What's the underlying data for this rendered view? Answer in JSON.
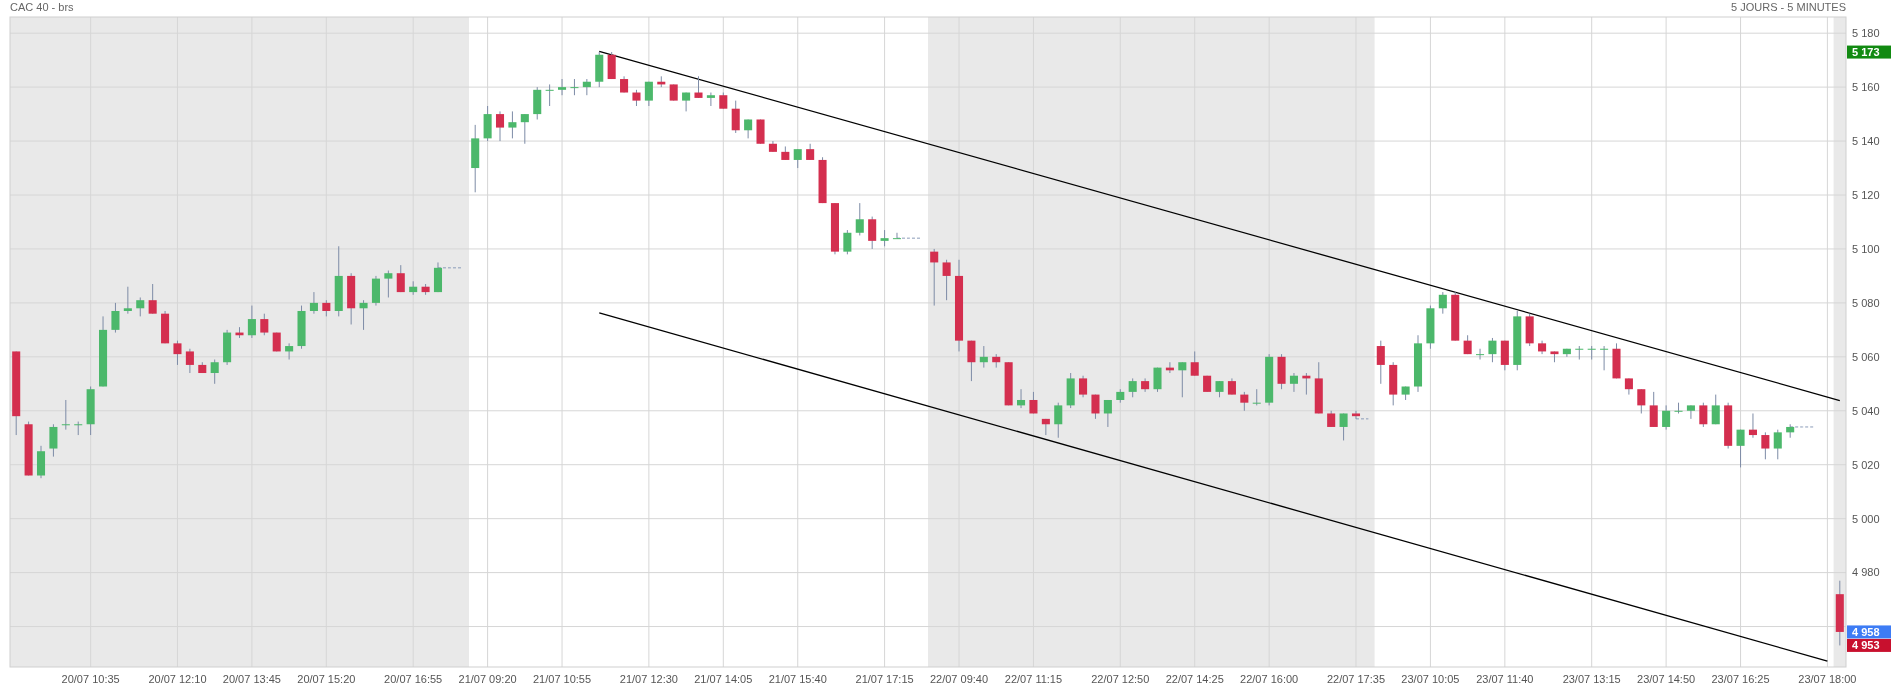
{
  "chart_data": {
    "type": "candlestick",
    "title": "CAC 40 - brs",
    "subtitle": "5 JOURS - 5 MINUTES",
    "categories": [
      null,
      null,
      null,
      null,
      null,
      null,
      "20/07 10:35",
      null,
      null,
      null,
      null,
      null,
      null,
      "20/07 12:10",
      null,
      null,
      null,
      null,
      null,
      "20/07 13:45",
      null,
      null,
      null,
      null,
      null,
      "20/07 15:20",
      null,
      null,
      null,
      null,
      null,
      null,
      "20/07 16:55",
      null,
      null,
      null,
      null,
      null,
      "21/07 09:20",
      null,
      null,
      null,
      null,
      null,
      "21/07 10:55",
      null,
      null,
      null,
      null,
      null,
      null,
      "21/07 12:30",
      null,
      null,
      null,
      null,
      null,
      "21/07 14:05",
      null,
      null,
      null,
      null,
      null,
      "21/07 15:40",
      null,
      null,
      null,
      null,
      null,
      null,
      "21/07 17:15",
      null,
      null,
      null,
      null,
      null,
      "22/07 09:40",
      null,
      null,
      null,
      null,
      null,
      "22/07 11:15",
      null,
      null,
      null,
      null,
      null,
      null,
      "22/07 12:50",
      null,
      null,
      null,
      null,
      null,
      "22/07 14:25",
      null,
      null,
      null,
      null,
      null,
      "22/07 16:00",
      null,
      null,
      null,
      null,
      null,
      null,
      "22/07 17:35",
      null,
      null,
      null,
      null,
      null,
      "23/07 10:05",
      null,
      null,
      null,
      null,
      null,
      "23/07 11:40",
      null,
      null,
      null,
      null,
      null,
      null,
      "23/07 13:15",
      null,
      null,
      null,
      null,
      null,
      "23/07 14:50",
      null,
      null,
      null,
      null,
      null,
      "23/07 16:25",
      null,
      null,
      null,
      null,
      null,
      null,
      "23/07 18:00",
      null
    ],
    "ohlc": [
      [
        5062,
        5062,
        5031,
        5038
      ],
      [
        5035,
        5036,
        5016,
        5016
      ],
      [
        5016,
        5027,
        5015,
        5025
      ],
      [
        5026,
        5035,
        5023,
        5034
      ],
      [
        5035,
        5044,
        5033,
        5035
      ],
      [
        5035,
        5036,
        5031,
        5035
      ],
      [
        5035,
        5049,
        5031,
        5048
      ],
      [
        5049,
        5075,
        5049,
        5070
      ],
      [
        5070,
        5080,
        5069,
        5077
      ],
      [
        5077,
        5086,
        5076,
        5078
      ],
      [
        5078,
        5082,
        5075,
        5081
      ],
      [
        5081,
        5087,
        5076,
        5076
      ],
      [
        5076,
        5077,
        5065,
        5065
      ],
      [
        5065,
        5066,
        5057,
        5061
      ],
      [
        5062,
        5063,
        5054,
        5057
      ],
      [
        5057,
        5058,
        5054,
        5054
      ],
      [
        5054,
        5059,
        5050,
        5058
      ],
      [
        5058,
        5070,
        5057,
        5069
      ],
      [
        5069,
        5071,
        5067,
        5068
      ],
      [
        5068,
        5079,
        5067,
        5074
      ],
      [
        5074,
        5076,
        5068,
        5069
      ],
      [
        5069,
        5069,
        5062,
        5062
      ],
      [
        5062,
        5065,
        5059,
        5064
      ],
      [
        5064,
        5079,
        5063,
        5077
      ],
      [
        5077,
        5084,
        5076,
        5080
      ],
      [
        5080,
        5081,
        5075,
        5077
      ],
      [
        5077,
        5101,
        5075,
        5090
      ],
      [
        5090,
        5091,
        5072,
        5078
      ],
      [
        5078,
        5081,
        5070,
        5080
      ],
      [
        5080,
        5090,
        5079,
        5089
      ],
      [
        5089,
        5092,
        5082,
        5091
      ],
      [
        5091,
        5094,
        5084,
        5084
      ],
      [
        5084,
        5088,
        5083,
        5086
      ],
      [
        5086,
        5087,
        5083,
        5084
      ],
      [
        5084,
        5095,
        5084,
        5093
      ],
      null,
      null,
      [
        5130,
        5146,
        5121,
        5141
      ],
      [
        5141,
        5153,
        5140,
        5150
      ],
      [
        5150,
        5151,
        5140,
        5145
      ],
      [
        5145,
        5151,
        5141,
        5147
      ],
      [
        5147,
        5150,
        5139,
        5150
      ],
      [
        5150,
        5160,
        5148,
        5159
      ],
      [
        5159,
        5161,
        5153,
        5159
      ],
      [
        5159,
        5163,
        5157,
        5160
      ],
      [
        5160,
        5163,
        5157,
        5160
      ],
      [
        5160,
        5163,
        5157,
        5162
      ],
      [
        5162,
        5173,
        5160,
        5172
      ],
      [
        5172,
        5173,
        5163,
        5163
      ],
      [
        5163,
        5164,
        5158,
        5158
      ],
      [
        5158,
        5159,
        5153,
        5155
      ],
      [
        5155,
        5162,
        5153,
        5162
      ],
      [
        5162,
        5164,
        5160,
        5161
      ],
      [
        5161,
        5161,
        5155,
        5155
      ],
      [
        5155,
        5158,
        5151,
        5158
      ],
      [
        5158,
        5164,
        5156,
        5156
      ],
      [
        5156,
        5158,
        5153,
        5157
      ],
      [
        5157,
        5158,
        5152,
        5152
      ],
      [
        5152,
        5155,
        5143,
        5144
      ],
      [
        5144,
        5148,
        5141,
        5148
      ],
      [
        5148,
        5148,
        5139,
        5139
      ],
      [
        5139,
        5140,
        5136,
        5136
      ],
      [
        5136,
        5138,
        5133,
        5133
      ],
      [
        5133,
        5137,
        5130,
        5137
      ],
      [
        5137,
        5139,
        5133,
        5133
      ],
      [
        5133,
        5134,
        5117,
        5117
      ],
      [
        5117,
        5117,
        5098,
        5099
      ],
      [
        5099,
        5107,
        5098,
        5106
      ],
      [
        5106,
        5117,
        5105,
        5111
      ],
      [
        5111,
        5112,
        5100,
        5103
      ],
      [
        5103,
        5107,
        5101,
        5104
      ],
      [
        5104,
        5106,
        5104,
        5104
      ],
      null,
      null,
      [
        5099,
        5100,
        5079,
        5095
      ],
      [
        5095,
        5096,
        5081,
        5090
      ],
      [
        5090,
        5096,
        5062,
        5066
      ],
      [
        5066,
        5066,
        5051,
        5058
      ],
      [
        5058,
        5064,
        5056,
        5060
      ],
      [
        5060,
        5061,
        5056,
        5058
      ],
      [
        5058,
        5058,
        5042,
        5042
      ],
      [
        5042,
        5048,
        5041,
        5044
      ],
      [
        5044,
        5047,
        5039,
        5039
      ],
      [
        5037,
        5037,
        5031,
        5035
      ],
      [
        5035,
        5043,
        5030,
        5042
      ],
      [
        5042,
        5054,
        5041,
        5052
      ],
      [
        5052,
        5053,
        5045,
        5046
      ],
      [
        5046,
        5046,
        5037,
        5039
      ],
      [
        5039,
        5044,
        5034,
        5044
      ],
      [
        5044,
        5048,
        5043,
        5047
      ],
      [
        5047,
        5052,
        5045,
        5051
      ],
      [
        5051,
        5052,
        5047,
        5048
      ],
      [
        5048,
        5056,
        5047,
        5056
      ],
      [
        5056,
        5058,
        5054,
        5055
      ],
      [
        5055,
        5058,
        5045,
        5058
      ],
      [
        5058,
        5062,
        5053,
        5053
      ],
      [
        5053,
        5053,
        5047,
        5047
      ],
      [
        5047,
        5051,
        5045,
        5051
      ],
      [
        5051,
        5052,
        5046,
        5046
      ],
      [
        5046,
        5047,
        5040,
        5043
      ],
      [
        5043,
        5048,
        5042,
        5043
      ],
      [
        5043,
        5061,
        5042,
        5060
      ],
      [
        5060,
        5061,
        5048,
        5050
      ],
      [
        5050,
        5054,
        5047,
        5053
      ],
      [
        5053,
        5054,
        5046,
        5052
      ],
      [
        5052,
        5058,
        5039,
        5039
      ],
      [
        5039,
        5040,
        5034,
        5034
      ],
      [
        5034,
        5039,
        5029,
        5039
      ],
      [
        5039,
        5040,
        5037,
        5038
      ],
      null,
      [
        5064,
        5066,
        5050,
        5057
      ],
      [
        5057,
        5058,
        5042,
        5046
      ],
      [
        5046,
        5049,
        5044,
        5049
      ],
      [
        5049,
        5068,
        5047,
        5065
      ],
      [
        5065,
        5079,
        5063,
        5078
      ],
      [
        5078,
        5084,
        5076,
        5083
      ],
      [
        5083,
        5084,
        5066,
        5066
      ],
      [
        5066,
        5068,
        5061,
        5061
      ],
      [
        5061,
        5063,
        5059,
        5061
      ],
      [
        5061,
        5067,
        5058,
        5066
      ],
      [
        5066,
        5066,
        5055,
        5057
      ],
      [
        5057,
        5077,
        5055,
        5075
      ],
      [
        5075,
        5076,
        5064,
        5065
      ],
      [
        5065,
        5066,
        5061,
        5062
      ],
      [
        5062,
        5062,
        5058,
        5061
      ],
      [
        5061,
        5063,
        5060,
        5063
      ],
      [
        5063,
        5064,
        5059,
        5063
      ],
      [
        5063,
        5064,
        5059,
        5063
      ],
      [
        5063,
        5064,
        5055,
        5063
      ],
      [
        5063,
        5065,
        5052,
        5052
      ],
      [
        5052,
        5052,
        5046,
        5048
      ],
      [
        5048,
        5048,
        5039,
        5042
      ],
      [
        5042,
        5047,
        5034,
        5034
      ],
      [
        5034,
        5042,
        5033,
        5040
      ],
      [
        5040,
        5043,
        5039,
        5040
      ],
      [
        5040,
        5042,
        5037,
        5042
      ],
      [
        5042,
        5043,
        5034,
        5035
      ],
      [
        5035,
        5046,
        5035,
        5042
      ],
      [
        5042,
        5043,
        5026,
        5027
      ],
      [
        5027,
        5033,
        5019,
        5033
      ],
      [
        5033,
        5039,
        5030,
        5031
      ],
      [
        5031,
        5032,
        5022,
        5026
      ],
      [
        5026,
        5033,
        5022,
        5032
      ],
      [
        5032,
        5035,
        5030,
        5034
      ],
      null,
      null,
      null,
      [
        4972,
        4977,
        4953,
        4958
      ]
    ],
    "series": [
      {
        "type": "line",
        "color": "#8a9bb8",
        "line_style": "dashed",
        "values": [
          null,
          null,
          null,
          null,
          null,
          null,
          null,
          null,
          null,
          null,
          null,
          null,
          null,
          null,
          null,
          null,
          null,
          null,
          null,
          null,
          null,
          null,
          null,
          null,
          null,
          null,
          null,
          null,
          null,
          null,
          null,
          null,
          null,
          null,
          5093,
          5093,
          5093,
          null,
          null,
          null,
          null,
          null,
          null,
          null,
          null,
          null,
          null,
          null,
          null,
          null,
          null,
          null,
          null,
          null,
          null,
          null,
          null,
          null,
          null,
          null,
          null,
          null,
          null,
          null,
          null,
          null,
          null,
          null,
          null,
          null,
          null,
          null,
          null,
          null,
          null,
          null,
          null,
          null,
          null,
          null,
          null,
          null,
          null,
          null,
          null,
          null,
          null,
          null,
          null,
          null,
          null,
          null,
          null,
          null,
          null,
          null,
          null,
          null,
          null,
          null,
          null,
          null,
          null,
          null,
          null,
          null,
          null,
          null,
          null,
          null,
          null,
          null,
          null,
          null,
          null,
          null,
          null,
          null,
          null,
          null,
          null,
          null,
          null,
          null,
          null,
          null,
          null,
          null,
          null,
          null,
          null,
          null,
          null,
          null,
          null,
          null,
          null,
          null,
          null,
          null,
          null,
          null,
          null,
          null,
          null,
          null,
          null,
          null
        ]
      },
      {
        "type": "line",
        "color": "#8a9bb8",
        "line_style": "dashed",
        "values": [
          null,
          null,
          null,
          null,
          null,
          null,
          null,
          null,
          null,
          null,
          null,
          null,
          null,
          null,
          null,
          null,
          null,
          null,
          null,
          null,
          null,
          null,
          null,
          null,
          null,
          null,
          null,
          null,
          null,
          null,
          null,
          null,
          null,
          null,
          null,
          null,
          null,
          null,
          null,
          null,
          null,
          null,
          null,
          null,
          null,
          null,
          null,
          null,
          null,
          null,
          null,
          null,
          null,
          null,
          null,
          null,
          null,
          null,
          null,
          null,
          null,
          null,
          null,
          null,
          null,
          null,
          null,
          null,
          null,
          null,
          null,
          5104,
          5104,
          5104,
          null,
          null,
          null,
          null,
          null,
          null,
          null,
          null,
          null,
          null,
          null,
          null,
          null,
          null,
          null,
          null,
          null,
          null,
          null,
          null,
          null,
          null,
          null,
          null,
          null,
          null,
          null,
          null,
          null,
          null,
          null,
          null,
          null,
          null,
          null,
          null,
          null,
          null,
          null,
          null,
          null,
          null,
          null,
          null,
          null,
          null,
          null,
          null,
          null,
          null,
          null,
          null,
          null,
          null,
          null,
          null,
          null,
          null,
          null,
          null,
          null,
          null,
          null,
          null,
          null,
          null,
          null,
          null,
          null,
          null,
          null,
          null,
          null,
          null
        ]
      },
      {
        "type": "line",
        "color": "#8a9bb8",
        "line_style": "dashed",
        "values": [
          null,
          null,
          null,
          null,
          null,
          null,
          null,
          null,
          null,
          null,
          null,
          null,
          null,
          null,
          null,
          null,
          null,
          null,
          null,
          null,
          null,
          null,
          null,
          null,
          null,
          null,
          null,
          null,
          null,
          null,
          null,
          null,
          null,
          null,
          null,
          null,
          null,
          null,
          null,
          null,
          null,
          null,
          null,
          null,
          null,
          null,
          null,
          null,
          null,
          null,
          null,
          null,
          null,
          null,
          null,
          null,
          null,
          null,
          null,
          null,
          null,
          null,
          null,
          null,
          null,
          null,
          null,
          null,
          null,
          null,
          null,
          null,
          null,
          null,
          null,
          null,
          null,
          null,
          null,
          null,
          null,
          null,
          null,
          null,
          null,
          null,
          null,
          null,
          null,
          null,
          null,
          null,
          null,
          null,
          null,
          null,
          null,
          null,
          null,
          null,
          null,
          null,
          null,
          null,
          null,
          null,
          null,
          null,
          5037,
          5037,
          null,
          null,
          null,
          null,
          null,
          null,
          null,
          null,
          null,
          null,
          null,
          null,
          null,
          null,
          null,
          null,
          null,
          null,
          null,
          null,
          null,
          null,
          null,
          null,
          null,
          null,
          null,
          null,
          null,
          null,
          null,
          null,
          null,
          null,
          null,
          null,
          null,
          null
        ]
      },
      {
        "type": "line",
        "color": "#8a9bb8",
        "line_style": "dashed",
        "values": [
          null,
          null,
          null,
          null,
          null,
          null,
          null,
          null,
          null,
          null,
          null,
          null,
          null,
          null,
          null,
          null,
          null,
          null,
          null,
          null,
          null,
          null,
          null,
          null,
          null,
          null,
          null,
          null,
          null,
          null,
          null,
          null,
          null,
          null,
          null,
          null,
          null,
          null,
          null,
          null,
          null,
          null,
          null,
          null,
          null,
          null,
          null,
          null,
          null,
          null,
          null,
          null,
          null,
          null,
          null,
          null,
          null,
          null,
          null,
          null,
          null,
          null,
          null,
          null,
          null,
          null,
          null,
          null,
          null,
          null,
          null,
          null,
          null,
          null,
          null,
          null,
          null,
          null,
          null,
          null,
          null,
          null,
          null,
          null,
          null,
          null,
          null,
          null,
          null,
          null,
          null,
          null,
          null,
          null,
          null,
          null,
          null,
          null,
          null,
          null,
          null,
          null,
          null,
          null,
          null,
          null,
          null,
          null,
          null,
          null,
          null,
          null,
          null,
          null,
          null,
          null,
          null,
          null,
          null,
          null,
          null,
          null,
          null,
          null,
          null,
          null,
          null,
          null,
          null,
          null,
          null,
          null,
          null,
          null,
          null,
          null,
          null,
          null,
          null,
          null,
          null,
          null,
          null,
          5034,
          5034,
          5034,
          null,
          null
        ]
      },
      {
        "type": "line",
        "color": "#000000",
        "values": [
          null,
          null,
          null,
          null,
          null,
          null,
          null,
          null,
          null,
          null,
          null,
          null,
          null,
          null,
          null,
          null,
          null,
          null,
          null,
          null,
          null,
          null,
          null,
          null,
          null,
          null,
          null,
          null,
          null,
          null,
          null,
          null,
          null,
          null,
          null,
          null,
          null,
          null,
          null,
          null,
          null,
          null,
          null,
          null,
          null,
          null,
          null,
          5173.3,
          null,
          null,
          null,
          null,
          null,
          null,
          null,
          null,
          null,
          null,
          null,
          null,
          null,
          null,
          null,
          null,
          null,
          null,
          null,
          null,
          null,
          null,
          null,
          null,
          null,
          null,
          null,
          null,
          null,
          null,
          null,
          null,
          null,
          null,
          null,
          null,
          null,
          null,
          null,
          null,
          null,
          null,
          null,
          null,
          null,
          null,
          null,
          null,
          null,
          null,
          null,
          null,
          null,
          null,
          null,
          null,
          null,
          null,
          null,
          null,
          null,
          null,
          null,
          null,
          null,
          null,
          null,
          null,
          null,
          null,
          null,
          null,
          null,
          null,
          null,
          null,
          null,
          null,
          null,
          null,
          null,
          null,
          null,
          null,
          null,
          null,
          null,
          null,
          null,
          null,
          null,
          null,
          null,
          null,
          null,
          null,
          null,
          null,
          null,
          5043.8
        ]
      },
      {
        "type": "line",
        "color": "#000000",
        "values": [
          null,
          null,
          null,
          null,
          null,
          null,
          null,
          null,
          null,
          null,
          null,
          null,
          null,
          null,
          null,
          null,
          null,
          null,
          null,
          null,
          null,
          null,
          null,
          null,
          null,
          null,
          null,
          null,
          null,
          null,
          null,
          null,
          null,
          null,
          null,
          null,
          null,
          null,
          null,
          null,
          null,
          null,
          null,
          null,
          null,
          null,
          null,
          5076.3,
          null,
          null,
          null,
          null,
          null,
          null,
          null,
          null,
          null,
          null,
          null,
          null,
          null,
          null,
          null,
          null,
          null,
          null,
          null,
          null,
          null,
          null,
          null,
          null,
          null,
          null,
          null,
          null,
          null,
          null,
          null,
          null,
          null,
          null,
          null,
          null,
          null,
          null,
          null,
          null,
          null,
          null,
          null,
          null,
          null,
          null,
          null,
          null,
          null,
          null,
          null,
          null,
          null,
          null,
          null,
          null,
          null,
          null,
          null,
          null,
          null,
          null,
          null,
          null,
          null,
          null,
          null,
          null,
          null,
          null,
          null,
          null,
          null,
          null,
          null,
          null,
          null,
          null,
          null,
          null,
          null,
          null,
          null,
          null,
          null,
          null,
          null,
          null,
          null,
          null,
          null,
          null,
          null,
          null,
          null,
          null,
          null,
          null,
          4947.2,
          null
        ]
      }
    ],
    "ylim": [
      4945,
      5186
    ],
    "yticks": [
      {
        "value": 4960,
        "label": null
      },
      {
        "value": 4980,
        "label": "4 980"
      },
      {
        "value": 5000,
        "label": "5 000"
      },
      {
        "value": 5020,
        "label": "5 020"
      },
      {
        "value": 5040,
        "label": "5 040"
      },
      {
        "value": 5060,
        "label": "5 060"
      },
      {
        "value": 5080,
        "label": "5 080"
      },
      {
        "value": 5100,
        "label": "5 100"
      },
      {
        "value": 5120,
        "label": "5 120"
      },
      {
        "value": 5140,
        "label": "5 140"
      },
      {
        "value": 5160,
        "label": "5 160"
      },
      {
        "value": 5180,
        "label": "5 180"
      }
    ],
    "grid": true,
    "annotations": [
      "5 173",
      "4 958",
      "4 953"
    ]
  }
}
